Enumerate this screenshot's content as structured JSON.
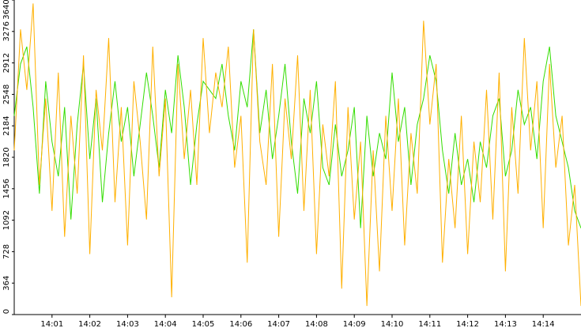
{
  "chart_data": {
    "type": "line",
    "categories": [
      null,
      null,
      null,
      null,
      null,
      null,
      "14:01",
      null,
      null,
      null,
      null,
      null,
      "14:02",
      null,
      null,
      null,
      null,
      null,
      "14:03",
      null,
      null,
      null,
      null,
      null,
      "14:04",
      null,
      null,
      null,
      null,
      null,
      "14:05",
      null,
      null,
      null,
      null,
      null,
      "14:06",
      null,
      null,
      null,
      null,
      null,
      "14:07",
      null,
      null,
      null,
      null,
      null,
      "14:08",
      null,
      null,
      null,
      null,
      null,
      "14:09",
      null,
      null,
      null,
      null,
      null,
      "14:10",
      null,
      null,
      null,
      null,
      null,
      "14:11",
      null,
      null,
      null,
      null,
      null,
      "14:12",
      null,
      null,
      null,
      null,
      null,
      "14:13",
      null,
      null,
      null,
      null,
      null,
      "14:14",
      null,
      null,
      null,
      null,
      null,
      null
    ],
    "series": [
      {
        "color": "#33dd00",
        "values": [
          2300,
          2900,
          3100,
          2400,
          1400,
          2700,
          2000,
          1600,
          2400,
          1100,
          2200,
          2900,
          1800,
          2500,
          1300,
          2100,
          2700,
          2000,
          2400,
          1600,
          2200,
          2800,
          2300,
          1700,
          2600,
          2100,
          3000,
          2400,
          1500,
          2200,
          2700,
          2600,
          2500,
          2900,
          2300,
          1900,
          2700,
          2400,
          3300,
          2100,
          2600,
          1800,
          2300,
          2900,
          2000,
          1400,
          2500,
          2100,
          2700,
          1700,
          1500,
          2200,
          1600,
          1900,
          2400,
          1000,
          2300,
          1600,
          2100,
          1800,
          2800,
          2000,
          2400,
          1500,
          2200,
          2500,
          3000,
          2700,
          1900,
          1400,
          2100,
          1500,
          1800,
          1300,
          2000,
          1700,
          2300,
          2500,
          1600,
          1900,
          2600,
          2200,
          2400,
          1800,
          2700,
          3100,
          2300,
          2000,
          1700,
          1200,
          1000
        ]
      },
      {
        "color": "#ffb000",
        "values": [
          1900,
          3300,
          2600,
          3600,
          1500,
          2500,
          1200,
          2800,
          900,
          2300,
          1400,
          3000,
          700,
          2600,
          1900,
          3200,
          1300,
          2400,
          800,
          2700,
          2000,
          1100,
          3100,
          1600,
          2500,
          200,
          2900,
          1800,
          2600,
          1500,
          3200,
          2100,
          2800,
          2400,
          3100,
          1700,
          2300,
          600,
          3300,
          2000,
          1500,
          2900,
          900,
          2500,
          1800,
          3000,
          1200,
          2600,
          700,
          2200,
          1600,
          2700,
          300,
          2400,
          1100,
          2000,
          100,
          1900,
          500,
          2300,
          1200,
          2500,
          800,
          2100,
          1400,
          3400,
          2200,
          2900,
          600,
          1800,
          1000,
          2300,
          700,
          2000,
          1300,
          2600,
          1100,
          2800,
          500,
          2400,
          1400,
          3200,
          1900,
          2700,
          1000,
          2900,
          1700,
          2300,
          800,
          1500,
          100
        ]
      }
    ],
    "ylim": [
      0,
      3640
    ],
    "yticks": [
      0,
      364,
      728,
      1092,
      1456,
      1820,
      2184,
      2548,
      2912,
      3276,
      3640
    ]
  }
}
